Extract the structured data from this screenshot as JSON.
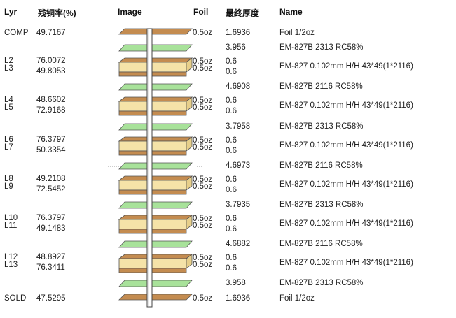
{
  "headers": {
    "layer": "Lyr",
    "residual_copper": "残铜率(%)",
    "image": "Image",
    "foil": "Foil",
    "final_thickness": "最终厚度",
    "name": "Name"
  },
  "colors": {
    "core": "#f5e3a8",
    "copper": "#c48c50",
    "prepreg": "#a8e29a",
    "drill": "#ffffff"
  },
  "rows": [
    {
      "kind": "foil",
      "layer": "COMP",
      "copper": "49.7167",
      "foil": "0.5oz",
      "thickness": "1.6936",
      "name": "Foil 1/2oz"
    },
    {
      "kind": "prepreg",
      "thickness": "3.956",
      "name": "EM-827B 2313 RC58%"
    },
    {
      "kind": "core",
      "layer1": "L2",
      "layer2": "L3",
      "copper1": "76.0072",
      "copper2": "49.8053",
      "foil1": "0.5oz",
      "foil2": "0.5oz",
      "thickness1": "0.6",
      "thickness2": "0.6",
      "name": "EM-827 0.102mm H/H 43*49(1*2116)"
    },
    {
      "kind": "prepreg",
      "thickness": "4.6908",
      "name": "EM-827B 2116 RC58%"
    },
    {
      "kind": "core",
      "layer1": "L4",
      "layer2": "L5",
      "copper1": "48.6602",
      "copper2": "72.9168",
      "foil1": "0.5oz",
      "foil2": "0.5oz",
      "thickness1": "0.6",
      "thickness2": "0.6",
      "name": "EM-827 0.102mm H/H 43*49(1*2116)"
    },
    {
      "kind": "prepreg",
      "thickness": "3.7958",
      "name": "EM-827B 2313 RC58%"
    },
    {
      "kind": "core",
      "layer1": "L6",
      "layer2": "L7",
      "copper1": "76.3797",
      "copper2": "50.3354",
      "foil1": "0.5oz",
      "foil2": "0.5oz",
      "thickness1": "0.6",
      "thickness2": "0.6",
      "name": "EM-827 0.102mm H/H 43*49(1*2116)"
    },
    {
      "kind": "prepreg",
      "thickness": "4.6973",
      "name": "EM-827B 2116 RC58%",
      "dotted": true
    },
    {
      "kind": "core",
      "layer1": "L8",
      "layer2": "L9",
      "copper1": "49.2108",
      "copper2": "72.5452",
      "foil1": "0.5oz",
      "foil2": "0.5oz",
      "thickness1": "0.6",
      "thickness2": "0.6",
      "name": "EM-827 0.102mm H/H 43*49(1*2116)"
    },
    {
      "kind": "prepreg",
      "thickness": "3.7935",
      "name": "EM-827B 2313 RC58%"
    },
    {
      "kind": "core",
      "layer1": "L10",
      "layer2": "L11",
      "copper1": "76.3797",
      "copper2": "49.1483",
      "foil1": "0.5oz",
      "foil2": "0.5oz",
      "thickness1": "0.6",
      "thickness2": "0.6",
      "name": "EM-827 0.102mm H/H 43*49(1*2116)"
    },
    {
      "kind": "prepreg",
      "thickness": "4.6882",
      "name": "EM-827B 2116 RC58%"
    },
    {
      "kind": "core",
      "layer1": "L12",
      "layer2": "L13",
      "copper1": "48.8927",
      "copper2": "76.3411",
      "foil1": "0.5oz",
      "foil2": "0.5oz",
      "thickness1": "0.6",
      "thickness2": "0.6",
      "name": "EM-827 0.102mm H/H 43*49(1*2116)"
    },
    {
      "kind": "prepreg",
      "thickness": "3.958",
      "name": "EM-827B 2313 RC58%"
    },
    {
      "kind": "foil",
      "layer": "SOLD",
      "copper": "47.5295",
      "foil": "0.5oz",
      "thickness": "1.6936",
      "name": "Foil 1/2oz"
    }
  ]
}
